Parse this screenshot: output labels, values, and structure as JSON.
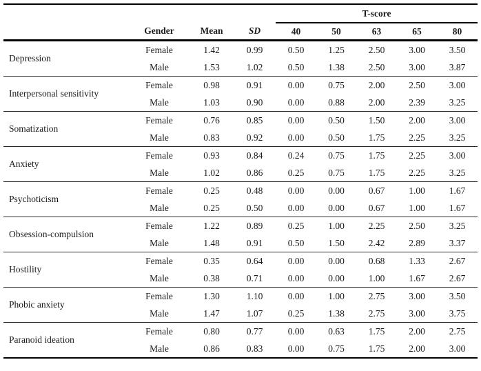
{
  "page": {
    "background_color": "#ffffff",
    "text_color": "#1a1a1a",
    "rule_color": "#000000"
  },
  "table": {
    "tscore_group_header": "T-score",
    "column_headers": {
      "scale": "",
      "gender": "Gender",
      "mean": "Mean",
      "sd": "SD",
      "tscores": [
        "40",
        "50",
        "63",
        "65",
        "80"
      ]
    },
    "scales": [
      {
        "scale": "Depression",
        "entries": [
          {
            "gender": "Female",
            "mean": "1.42",
            "sd": "0.99",
            "t": [
              "0.50",
              "1.25",
              "2.50",
              "3.00",
              "3.50"
            ]
          },
          {
            "gender": "Male",
            "mean": "1.53",
            "sd": "1.02",
            "t": [
              "0.50",
              "1.38",
              "2.50",
              "3.00",
              "3.87"
            ]
          }
        ]
      },
      {
        "scale": "Interpersonal sensitivity",
        "entries": [
          {
            "gender": "Female",
            "mean": "0.98",
            "sd": "0.91",
            "t": [
              "0.00",
              "0.75",
              "2.00",
              "2.50",
              "3.00"
            ]
          },
          {
            "gender": "Male",
            "mean": "1.03",
            "sd": "0.90",
            "t": [
              "0.00",
              "0.88",
              "2.00",
              "2.39",
              "3.25"
            ]
          }
        ]
      },
      {
        "scale": "Somatization",
        "entries": [
          {
            "gender": "Female",
            "mean": "0.76",
            "sd": "0.85",
            "t": [
              "0.00",
              "0.50",
              "1.50",
              "2.00",
              "3.00"
            ]
          },
          {
            "gender": "Male",
            "mean": "0.83",
            "sd": "0.92",
            "t": [
              "0.00",
              "0.50",
              "1.75",
              "2.25",
              "3.25"
            ]
          }
        ]
      },
      {
        "scale": "Anxiety",
        "entries": [
          {
            "gender": "Female",
            "mean": "0.93",
            "sd": "0.84",
            "t": [
              "0.24",
              "0.75",
              "1.75",
              "2.25",
              "3.00"
            ]
          },
          {
            "gender": "Male",
            "mean": "1.02",
            "sd": "0.86",
            "t": [
              "0.25",
              "0.75",
              "1.75",
              "2.25",
              "3.25"
            ]
          }
        ]
      },
      {
        "scale": "Psychoticism",
        "entries": [
          {
            "gender": "Female",
            "mean": "0.25",
            "sd": "0.48",
            "t": [
              "0.00",
              "0.00",
              "0.67",
              "1.00",
              "1.67"
            ]
          },
          {
            "gender": "Male",
            "mean": "0.25",
            "sd": "0.50",
            "t": [
              "0.00",
              "0.00",
              "0.67",
              "1.00",
              "1.67"
            ]
          }
        ]
      },
      {
        "scale": "Obsession-compulsion",
        "entries": [
          {
            "gender": "Female",
            "mean": "1.22",
            "sd": "0.89",
            "t": [
              "0.25",
              "1.00",
              "2.25",
              "2.50",
              "3.25"
            ]
          },
          {
            "gender": "Male",
            "mean": "1.48",
            "sd": "0.91",
            "t": [
              "0.50",
              "1.50",
              "2.42",
              "2.89",
              "3.37"
            ]
          }
        ]
      },
      {
        "scale": "Hostility",
        "entries": [
          {
            "gender": "Female",
            "mean": "0.35",
            "sd": "0.64",
            "t": [
              "0.00",
              "0.00",
              "0.68",
              "1.33",
              "2.67"
            ]
          },
          {
            "gender": "Male",
            "mean": "0.38",
            "sd": "0.71",
            "t": [
              "0.00",
              "0.00",
              "1.00",
              "1.67",
              "2.67"
            ]
          }
        ]
      },
      {
        "scale": "Phobic anxiety",
        "entries": [
          {
            "gender": "Female",
            "mean": "1.30",
            "sd": "1.10",
            "t": [
              "0.00",
              "1.00",
              "2.75",
              "3.00",
              "3.50"
            ]
          },
          {
            "gender": "Male",
            "mean": "1.47",
            "sd": "1.07",
            "t": [
              "0.25",
              "1.38",
              "2.75",
              "3.00",
              "3.75"
            ]
          }
        ]
      },
      {
        "scale": "Paranoid ideation",
        "entries": [
          {
            "gender": "Female",
            "mean": "0.80",
            "sd": "0.77",
            "t": [
              "0.00",
              "0.63",
              "1.75",
              "2.00",
              "2.75"
            ]
          },
          {
            "gender": "Male",
            "mean": "0.86",
            "sd": "0.83",
            "t": [
              "0.00",
              "0.75",
              "1.75",
              "2.00",
              "3.00"
            ]
          }
        ]
      }
    ]
  }
}
